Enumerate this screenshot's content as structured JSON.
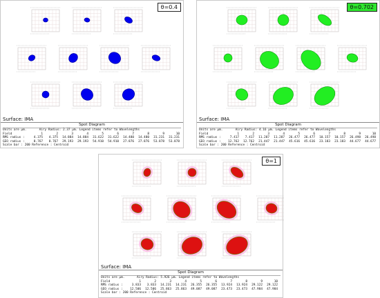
{
  "panels": [
    {
      "id": "top-left",
      "badge": "θ=0.4",
      "badge_style": "plain",
      "surface": "Surface: IMA",
      "title": "Spot Diagram",
      "units_line": "Units are µm.",
      "airy_line": "Airy Radius: 2.37 µm. Legend items refer to Wavelengths",
      "field_row": [
        "Field",
        "1",
        "2",
        "3",
        "4",
        "5",
        "6",
        "7",
        "8",
        "9",
        "10"
      ],
      "rms_row": [
        "RMS radius :",
        "4.375",
        "4.375",
        "14.884",
        "14.884",
        "31.622",
        "31.622",
        "14.480",
        "14.480",
        "31.231",
        "31.231"
      ],
      "geo_row": [
        "GEO radius :",
        "8.767",
        "8.767",
        "29.193",
        "29.193",
        "54.910",
        "54.910",
        "27.876",
        "27.876",
        "53.878",
        "53.878"
      ],
      "scale_line": "Scale bar : 200     Reference : Centroid",
      "spot_color": "#0000ee",
      "spot_edge": "#000099"
    },
    {
      "id": "top-right",
      "badge": "θ=0.702",
      "badge_style": "green",
      "surface": "Surface: IMA",
      "title": "Spot Diagram",
      "units_line": "Units are µm.",
      "airy_line": "Airy Radius: 4.16 µm. Legend items refer to Wavelengths",
      "field_row": [
        "Field",
        "1",
        "2",
        "3",
        "4",
        "5",
        "6",
        "7",
        "8",
        "9",
        "10"
      ],
      "rms_row": [
        "RMS radius :",
        "7.417",
        "7.417",
        "11.287",
        "11.287",
        "26.477",
        "26.477",
        "10.157",
        "10.157",
        "26.498",
        "26.498"
      ],
      "geo_row": [
        "GEO radius :",
        "12.762",
        "12.762",
        "21.447",
        "21.447",
        "45.616",
        "45.616",
        "23.183",
        "23.183",
        "44.677",
        "44.677"
      ],
      "scale_line": "Scale bar : 200     Reference : Centroid",
      "spot_color": "#22ee22",
      "spot_edge": "#119911"
    },
    {
      "id": "bottom",
      "badge": "θ=1",
      "badge_style": "plain",
      "surface": "Surface: IMA",
      "title": "Spot Diagram",
      "units_line": "Units are µm.",
      "airy_line": "Airy Radius: 5.926 µm. Legend items refer to Wavelengths",
      "field_row": [
        "Field",
        "1",
        "2",
        "3",
        "4",
        "5",
        "6",
        "7",
        "8",
        "9",
        "10"
      ],
      "rms_row": [
        "RMS radius :",
        "3.833",
        "3.833",
        "14.231",
        "14.231",
        "26.355",
        "26.355",
        "13.924",
        "13.924",
        "29.122",
        "29.122"
      ],
      "geo_row": [
        "GEO radius :",
        "12.506",
        "12.506",
        "25.863",
        "25.863",
        "49.087",
        "49.087",
        "23.473",
        "23.473",
        "47.984",
        "47.984"
      ],
      "scale_line": "Scale bar : 200     Reference : Centroid",
      "spot_color": "#dd1111",
      "spot_edge": "#558800"
    }
  ]
}
